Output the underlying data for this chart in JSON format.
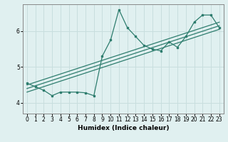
{
  "xlabel": "Humidex (Indice chaleur)",
  "bg_color": "#e0f0f0",
  "grid_color": "#c8dede",
  "line_color": "#2e7d6e",
  "xlim": [
    -0.5,
    23.5
  ],
  "ylim": [
    3.7,
    6.75
  ],
  "xticks": [
    0,
    1,
    2,
    3,
    4,
    5,
    6,
    7,
    8,
    9,
    10,
    11,
    12,
    13,
    14,
    15,
    16,
    17,
    18,
    19,
    20,
    21,
    22,
    23
  ],
  "yticks": [
    4,
    5,
    6
  ],
  "main_x": [
    0,
    1,
    2,
    3,
    4,
    5,
    6,
    7,
    8,
    9,
    10,
    11,
    12,
    13,
    14,
    15,
    16,
    17,
    18,
    19,
    20,
    21,
    22,
    23
  ],
  "main_y": [
    4.55,
    4.45,
    4.35,
    4.2,
    4.3,
    4.3,
    4.3,
    4.28,
    4.2,
    5.3,
    5.75,
    6.6,
    6.1,
    5.85,
    5.6,
    5.5,
    5.45,
    5.7,
    5.55,
    5.85,
    6.25,
    6.45,
    6.45,
    6.1
  ],
  "line1_x": [
    0,
    23
  ],
  "line1_y": [
    4.3,
    6.05
  ],
  "line2_x": [
    0,
    23
  ],
  "line2_y": [
    4.5,
    6.25
  ],
  "line3_x": [
    0,
    23
  ],
  "line3_y": [
    4.4,
    6.15
  ]
}
